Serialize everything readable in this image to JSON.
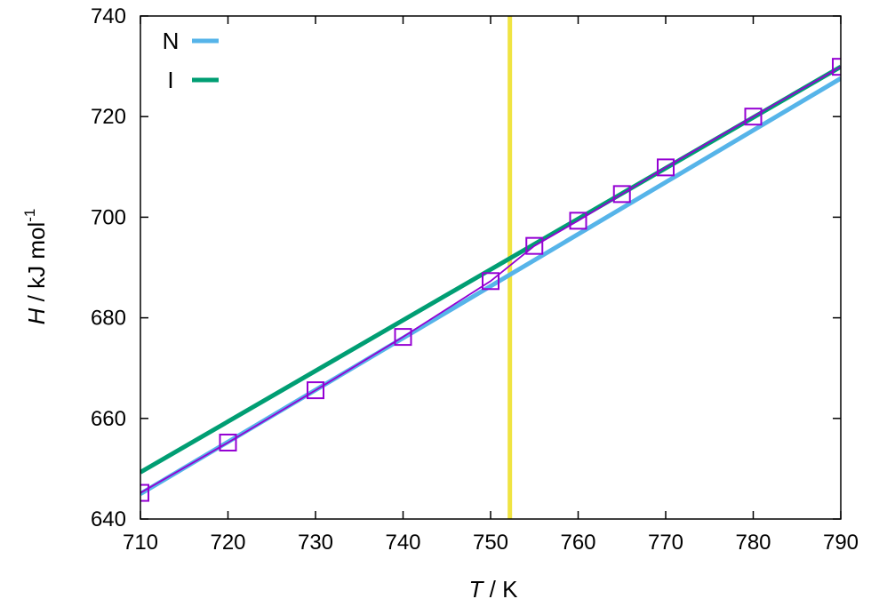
{
  "chart_data": {
    "type": "line",
    "title": "",
    "xlabel": {
      "symbol": "T",
      "unit": " / K"
    },
    "ylabel": {
      "symbol": "H",
      "unit": " /  kJ mol",
      "superscript": "-1"
    },
    "xlim": [
      710,
      790
    ],
    "ylim": [
      640,
      740
    ],
    "xticks": [
      710,
      720,
      730,
      740,
      750,
      760,
      770,
      780,
      790
    ],
    "yticks": [
      640,
      660,
      680,
      700,
      720,
      740
    ],
    "grid": false,
    "legend_position": "top-left",
    "series": [
      {
        "name": "N",
        "kind": "line",
        "color": "#56b4e9",
        "x": [
          710,
          790
        ],
        "y": [
          645,
          727.6
        ]
      },
      {
        "name": "I",
        "kind": "line",
        "color": "#009e73",
        "x": [
          710,
          790
        ],
        "y": [
          649.3,
          729.9
        ]
      },
      {
        "name": "",
        "kind": "points",
        "color": "#9400d3",
        "marker": "open-square",
        "x": [
          710,
          720,
          730,
          740,
          750,
          755,
          760,
          765,
          770,
          780,
          790
        ],
        "y": [
          645.2,
          655.2,
          665.6,
          676.2,
          687.3,
          694.3,
          699.3,
          704.6,
          709.9,
          720.0,
          729.9
        ]
      }
    ],
    "vline": {
      "x": 752.2,
      "color": "#f0e442"
    }
  }
}
